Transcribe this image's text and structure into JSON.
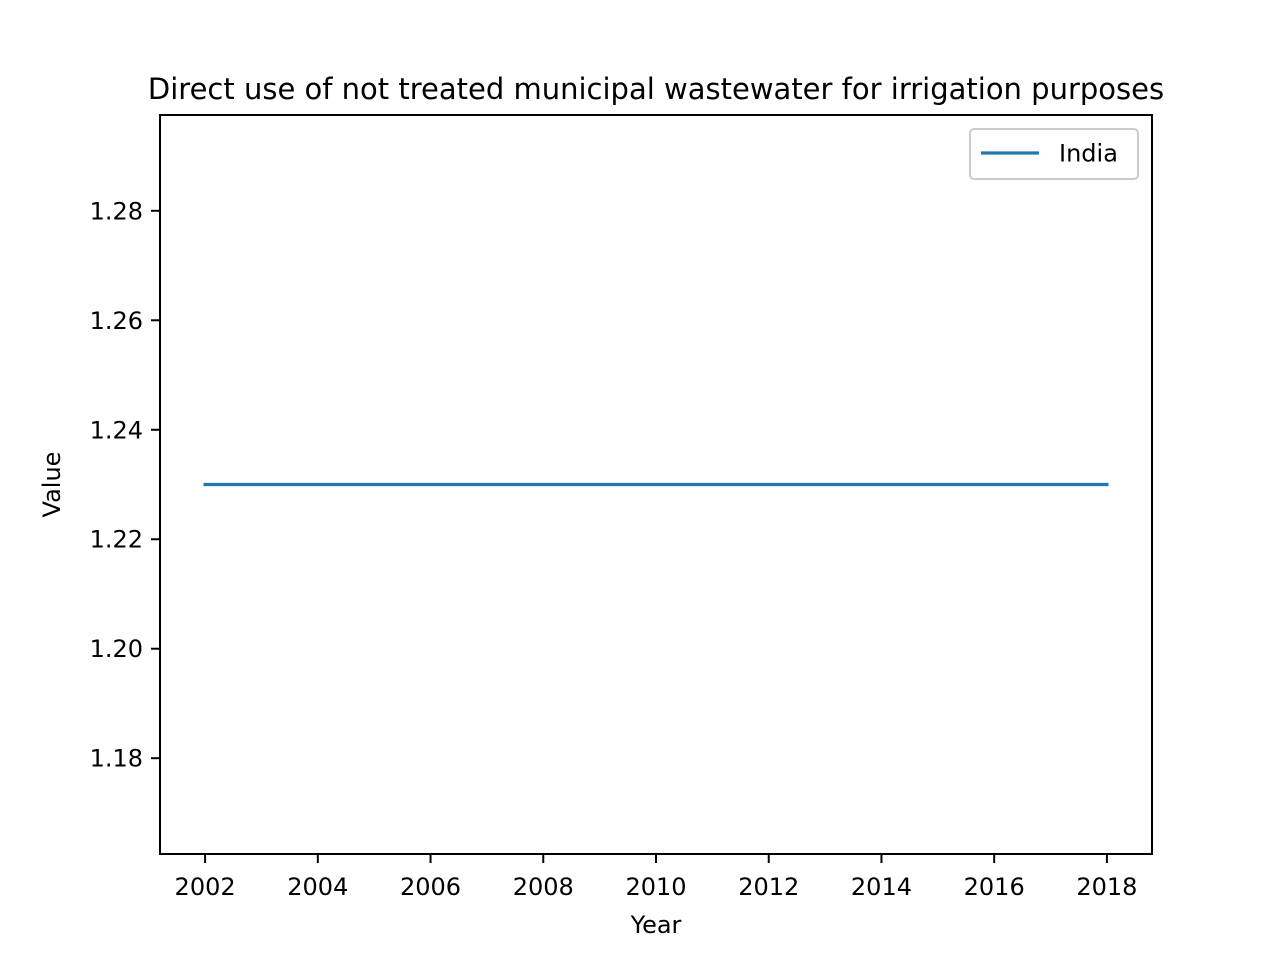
{
  "chart_data": {
    "type": "line",
    "title": "Direct use of not treated municipal wastewater for irrigation purposes",
    "xlabel": "Year",
    "ylabel": "Value",
    "xlim": [
      2001.2,
      2018.8
    ],
    "ylim": [
      1.1625,
      1.2975
    ],
    "xticks": [
      2002,
      2004,
      2006,
      2008,
      2010,
      2012,
      2014,
      2016,
      2018
    ],
    "xtick_labels": [
      "2002",
      "2004",
      "2006",
      "2008",
      "2010",
      "2012",
      "2014",
      "2016",
      "2018"
    ],
    "yticks": [
      1.18,
      1.2,
      1.22,
      1.24,
      1.26,
      1.28
    ],
    "ytick_labels": [
      "1.18",
      "1.20",
      "1.22",
      "1.24",
      "1.26",
      "1.28"
    ],
    "grid": false,
    "legend_position": "top-right",
    "series": [
      {
        "name": "India",
        "color": "#1f77b4",
        "x": [
          2002,
          2018
        ],
        "y": [
          1.23,
          1.23
        ]
      }
    ]
  }
}
